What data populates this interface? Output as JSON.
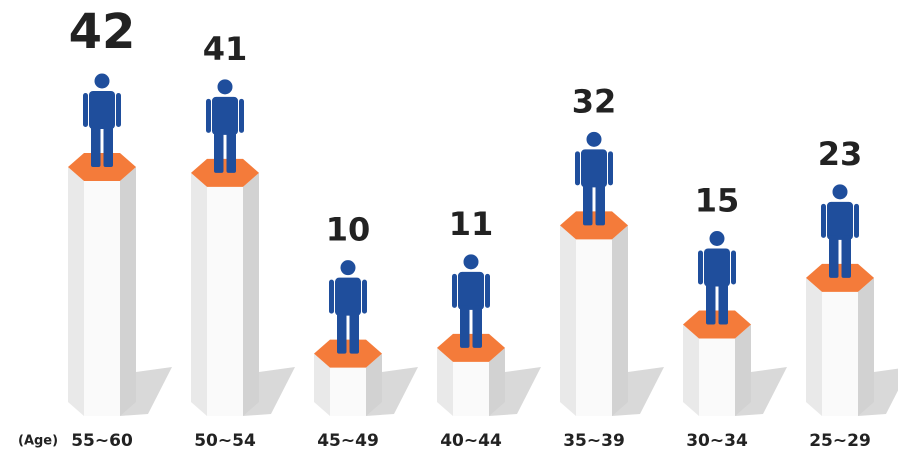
{
  "chart_data": {
    "type": "bar",
    "x_label": "(Age)",
    "categories": [
      "55~60",
      "50~54",
      "45~49",
      "40~44",
      "35~39",
      "30~34",
      "25~29"
    ],
    "values": [
      42,
      41,
      10,
      11,
      32,
      15,
      23
    ],
    "color": "#1f4e9c",
    "top_color": "#f47b3a"
  }
}
